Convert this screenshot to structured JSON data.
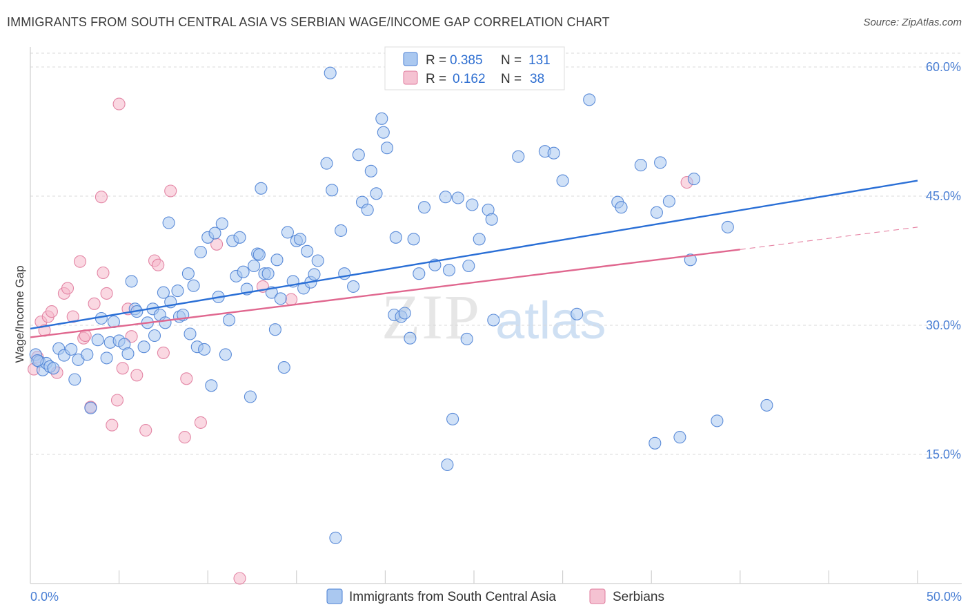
{
  "title": "IMMIGRANTS FROM SOUTH CENTRAL ASIA VS SERBIAN WAGE/INCOME GAP CORRELATION CHART",
  "source": "Source: ZipAtlas.com",
  "watermark": {
    "zip": "ZIP",
    "atlas": "atlas"
  },
  "colors": {
    "blue": "#4a7fd4",
    "blue_fill": "#aac8f0",
    "blue_line": "#2a6fd6",
    "pink": "#e07a9c",
    "pink_fill": "#f5b8cb",
    "pink_line": "#e0678f",
    "grid": "#d8d8d8",
    "tick_text": "#4a7fd4"
  },
  "legend": {
    "rows": [
      {
        "r_label": "R =",
        "r_value": "0.385",
        "n_label": "N =",
        "n_value": "131",
        "color": "blue"
      },
      {
        "r_label": "R =",
        "r_value": "0.162",
        "n_label": "N =",
        "n_value": "38",
        "color": "pink"
      }
    ]
  },
  "bottom_legend": [
    "Immigrants from South Central Asia",
    "Serbians"
  ],
  "chart_data": {
    "type": "scatter",
    "xlabel": "",
    "ylabel": "Wage/Income Gap",
    "xlim": [
      0,
      50
    ],
    "ylim": [
      0,
      63
    ],
    "x_tick_labels": [
      "0.0%",
      "50.0%"
    ],
    "y_ticks": [
      15,
      30,
      45,
      60
    ],
    "y_tick_labels": [
      "15.0%",
      "30.0%",
      "45.0%",
      "60.0%"
    ],
    "grid": true,
    "legend_position": "top-center",
    "series": [
      {
        "name": "Immigrants from South Central Asia",
        "color": "blue",
        "trend": {
          "x0": 0,
          "y0": 29.6,
          "x1": 50,
          "y1": 46.8
        },
        "points": [
          [
            0.3,
            26.6
          ],
          [
            0.5,
            25.8
          ],
          [
            0.7,
            24.8
          ],
          [
            0.9,
            25.6
          ],
          [
            1.1,
            25.2
          ],
          [
            1.3,
            25.0
          ],
          [
            1.6,
            27.3
          ],
          [
            1.9,
            26.5
          ],
          [
            2.3,
            27.2
          ],
          [
            2.7,
            26.0
          ],
          [
            2.5,
            23.7
          ],
          [
            3.2,
            26.6
          ],
          [
            3.4,
            20.4
          ],
          [
            3.8,
            28.3
          ],
          [
            4.0,
            30.8
          ],
          [
            4.3,
            26.2
          ],
          [
            4.5,
            28.0
          ],
          [
            4.7,
            30.4
          ],
          [
            5.0,
            28.2
          ],
          [
            5.3,
            27.8
          ],
          [
            5.5,
            26.7
          ],
          [
            5.7,
            35.1
          ],
          [
            5.9,
            31.9
          ],
          [
            6.0,
            31.6
          ],
          [
            6.4,
            27.5
          ],
          [
            6.6,
            30.3
          ],
          [
            6.9,
            31.9
          ],
          [
            7.0,
            28.8
          ],
          [
            7.3,
            31.2
          ],
          [
            7.5,
            33.8
          ],
          [
            7.6,
            30.3
          ],
          [
            7.8,
            41.9
          ],
          [
            7.9,
            32.7
          ],
          [
            8.3,
            34.0
          ],
          [
            8.4,
            31.0
          ],
          [
            8.6,
            31.2
          ],
          [
            8.9,
            36.0
          ],
          [
            9.0,
            29.0
          ],
          [
            9.2,
            34.6
          ],
          [
            9.4,
            27.5
          ],
          [
            9.6,
            38.5
          ],
          [
            9.8,
            27.2
          ],
          [
            10.0,
            40.2
          ],
          [
            10.2,
            23.0
          ],
          [
            10.4,
            40.7
          ],
          [
            10.6,
            33.3
          ],
          [
            10.8,
            41.8
          ],
          [
            11.0,
            26.6
          ],
          [
            11.2,
            30.6
          ],
          [
            11.4,
            39.8
          ],
          [
            11.6,
            35.7
          ],
          [
            11.8,
            40.2
          ],
          [
            12.0,
            36.2
          ],
          [
            12.2,
            34.2
          ],
          [
            12.4,
            21.7
          ],
          [
            12.6,
            36.9
          ],
          [
            12.8,
            38.3
          ],
          [
            12.9,
            38.2
          ],
          [
            13.0,
            45.9
          ],
          [
            13.2,
            36.0
          ],
          [
            13.4,
            36.0
          ],
          [
            13.6,
            33.8
          ],
          [
            13.8,
            29.5
          ],
          [
            13.9,
            37.6
          ],
          [
            14.1,
            33.1
          ],
          [
            14.3,
            25.1
          ],
          [
            14.5,
            40.8
          ],
          [
            14.8,
            35.1
          ],
          [
            15.0,
            39.8
          ],
          [
            15.2,
            40.0
          ],
          [
            15.4,
            34.3
          ],
          [
            15.6,
            38.6
          ],
          [
            15.8,
            35.0
          ],
          [
            16.0,
            35.9
          ],
          [
            16.2,
            37.5
          ],
          [
            16.7,
            48.8
          ],
          [
            16.9,
            59.3
          ],
          [
            17.0,
            45.7
          ],
          [
            17.2,
            5.3
          ],
          [
            17.5,
            41.0
          ],
          [
            17.7,
            36.0
          ],
          [
            18.2,
            34.5
          ],
          [
            18.5,
            49.8
          ],
          [
            18.7,
            44.3
          ],
          [
            19.0,
            43.4
          ],
          [
            19.2,
            47.9
          ],
          [
            19.5,
            45.3
          ],
          [
            19.8,
            54.0
          ],
          [
            19.9,
            52.4
          ],
          [
            20.1,
            50.6
          ],
          [
            20.5,
            31.2
          ],
          [
            20.6,
            40.2
          ],
          [
            20.9,
            31.0
          ],
          [
            21.1,
            31.4
          ],
          [
            21.4,
            28.5
          ],
          [
            21.6,
            40.0
          ],
          [
            21.9,
            36.0
          ],
          [
            22.2,
            43.7
          ],
          [
            22.8,
            37.0
          ],
          [
            23.4,
            44.9
          ],
          [
            23.6,
            36.4
          ],
          [
            23.8,
            19.1
          ],
          [
            23.5,
            13.8
          ],
          [
            24.1,
            44.8
          ],
          [
            24.6,
            28.4
          ],
          [
            24.7,
            36.9
          ],
          [
            24.9,
            44.0
          ],
          [
            25.3,
            40.0
          ],
          [
            25.8,
            43.4
          ],
          [
            26.0,
            42.3
          ],
          [
            26.1,
            30.6
          ],
          [
            27.5,
            49.6
          ],
          [
            29.0,
            50.2
          ],
          [
            29.5,
            50.0
          ],
          [
            30.0,
            46.8
          ],
          [
            30.8,
            31.3
          ],
          [
            31.5,
            56.2
          ],
          [
            33.1,
            44.3
          ],
          [
            33.3,
            43.7
          ],
          [
            34.4,
            48.6
          ],
          [
            35.2,
            16.3
          ],
          [
            35.3,
            43.1
          ],
          [
            35.5,
            48.9
          ],
          [
            36.0,
            44.4
          ],
          [
            36.6,
            17.0
          ],
          [
            37.4,
            47.0
          ],
          [
            37.2,
            37.6
          ],
          [
            38.7,
            18.9
          ],
          [
            39.3,
            41.4
          ],
          [
            41.5,
            20.7
          ],
          [
            0.4,
            25.9
          ]
        ]
      },
      {
        "name": "Serbians",
        "color": "pink",
        "trend": {
          "x0": 0,
          "y0": 28.6,
          "x1": 40,
          "y1": 38.8
        },
        "trend_dashed": {
          "x0": 40,
          "y0": 38.8,
          "x1": 50,
          "y1": 41.4
        },
        "points": [
          [
            0.2,
            24.9
          ],
          [
            0.4,
            26.3
          ],
          [
            0.6,
            30.4
          ],
          [
            0.8,
            29.4
          ],
          [
            1.0,
            31.0
          ],
          [
            1.2,
            31.6
          ],
          [
            1.5,
            24.5
          ],
          [
            1.9,
            33.7
          ],
          [
            2.1,
            34.3
          ],
          [
            2.4,
            31.0
          ],
          [
            2.8,
            37.4
          ],
          [
            3.0,
            28.5
          ],
          [
            3.1,
            28.8
          ],
          [
            3.4,
            20.5
          ],
          [
            3.6,
            32.5
          ],
          [
            4.0,
            44.9
          ],
          [
            4.1,
            36.1
          ],
          [
            4.3,
            33.7
          ],
          [
            4.6,
            18.4
          ],
          [
            4.9,
            21.3
          ],
          [
            5.0,
            55.7
          ],
          [
            5.2,
            25.0
          ],
          [
            5.5,
            31.9
          ],
          [
            5.7,
            28.7
          ],
          [
            6.0,
            24.2
          ],
          [
            6.5,
            17.8
          ],
          [
            7.0,
            37.5
          ],
          [
            7.2,
            37.0
          ],
          [
            7.5,
            26.8
          ],
          [
            7.9,
            45.6
          ],
          [
            8.7,
            17.0
          ],
          [
            8.8,
            23.8
          ],
          [
            9.6,
            18.7
          ],
          [
            10.5,
            39.4
          ],
          [
            11.8,
            0.6
          ],
          [
            13.1,
            34.5
          ],
          [
            14.7,
            33.0
          ],
          [
            37.0,
            46.6
          ]
        ]
      }
    ]
  }
}
